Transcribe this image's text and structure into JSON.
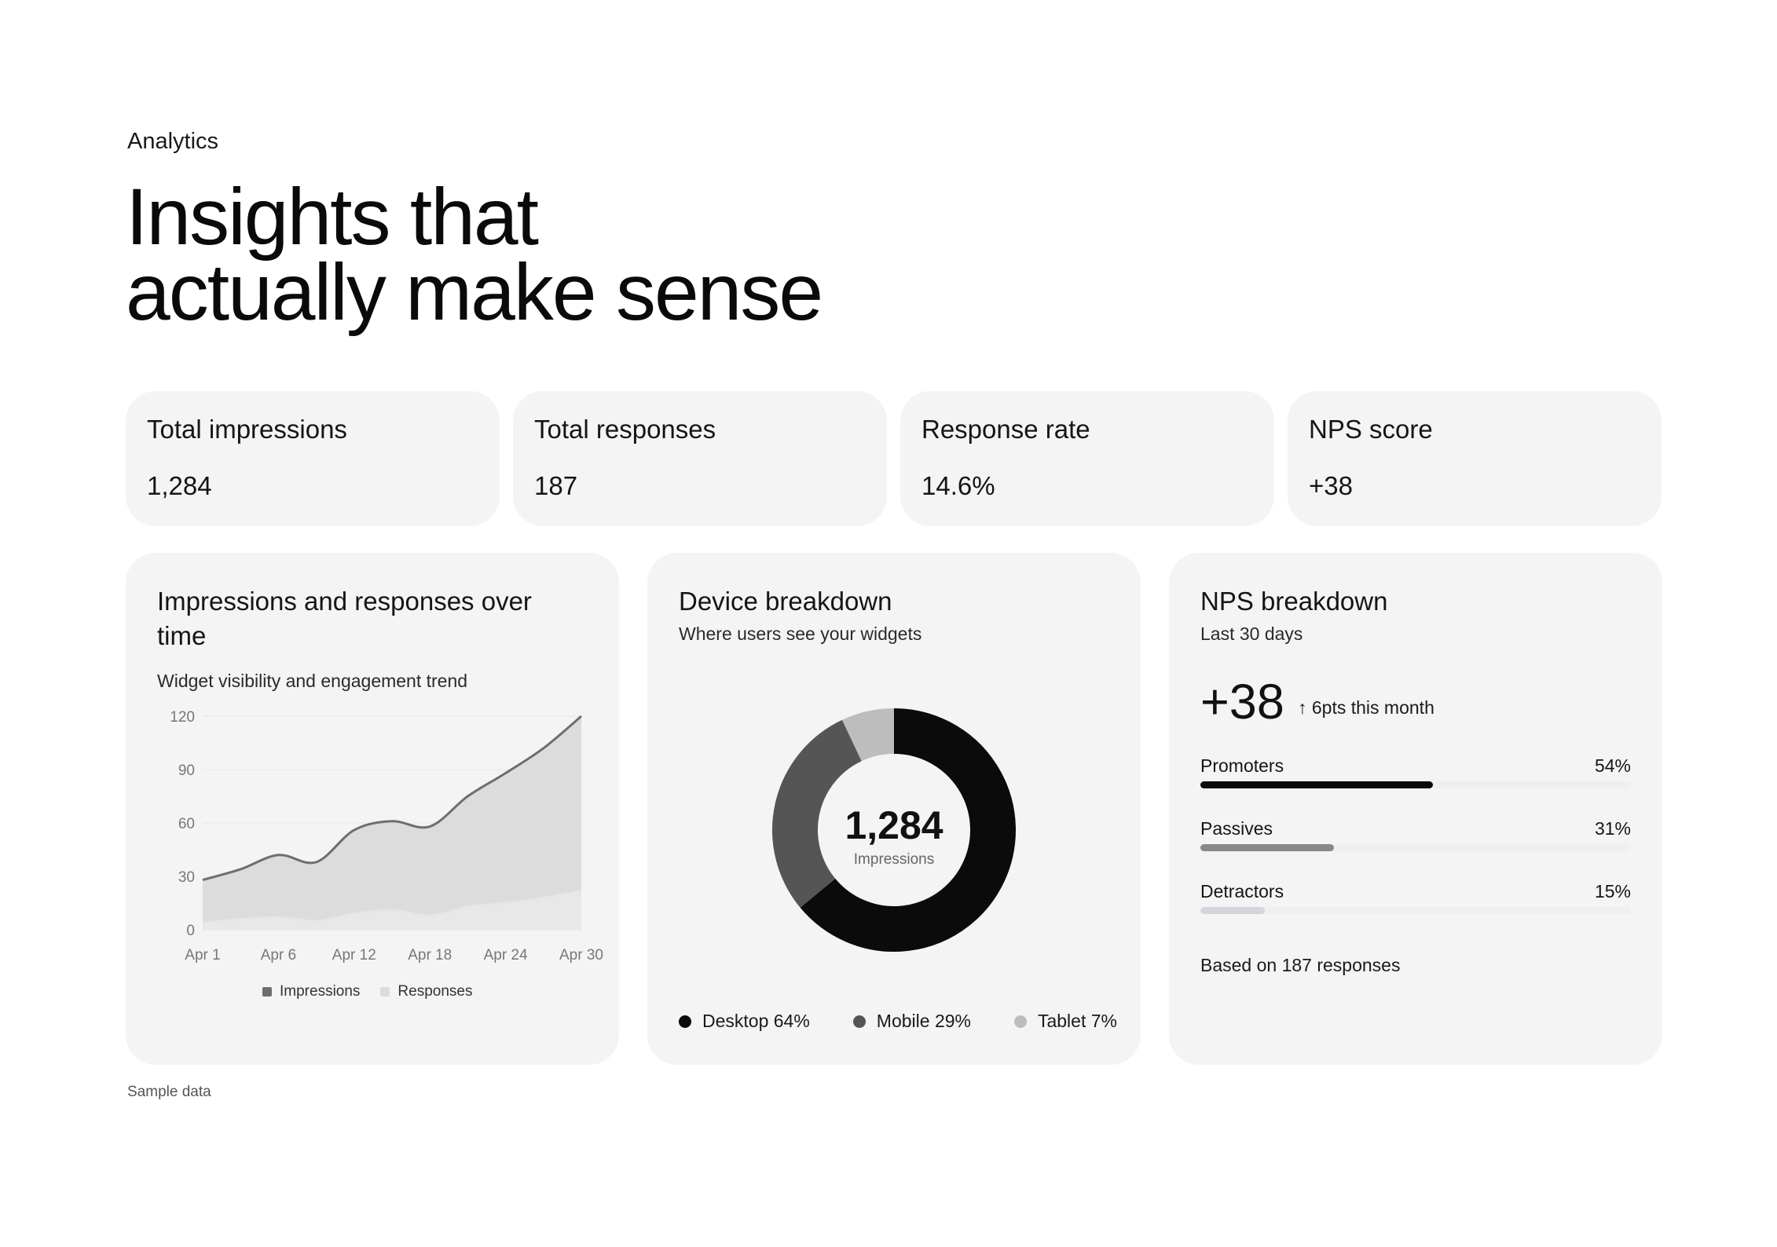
{
  "header": {
    "eyebrow": "Analytics",
    "title_line1": "Insights that",
    "title_line2": "actually make sense"
  },
  "stats": [
    {
      "label": "Total impressions",
      "value": "1,284"
    },
    {
      "label": "Total responses",
      "value": "187"
    },
    {
      "label": "Response rate",
      "value": "14.6%"
    },
    {
      "label": "NPS score",
      "value": "+38"
    }
  ],
  "trend_card": {
    "title": "Impressions and responses over time",
    "subtitle": "Widget visibility and engagement trend"
  },
  "device_card": {
    "title": "Device breakdown",
    "subtitle": "Where users see your widgets",
    "center_value": "1,284",
    "center_label": "Impressions",
    "legend": [
      {
        "label": "Desktop 64%",
        "color": "#0b0b0b"
      },
      {
        "label": "Mobile 29%",
        "color": "#555555"
      },
      {
        "label": "Tablet 7%",
        "color": "#bdbdbd"
      }
    ]
  },
  "nps_card": {
    "title": "NPS breakdown",
    "subtitle": "Last 30 days",
    "score": "+38",
    "delta": "↑ 6pts this month",
    "rows": [
      {
        "label": "Promoters",
        "value": "54%",
        "fraction": 0.54,
        "color": "#0b0b0b"
      },
      {
        "label": "Passives",
        "value": "31%",
        "fraction": 0.31,
        "color": "#888888"
      },
      {
        "label": "Detractors",
        "value": "15%",
        "fraction": 0.15,
        "color": "#d4d4de"
      }
    ],
    "footer": "Based on 187 responses"
  },
  "footnote": "Sample data",
  "chart_data": [
    {
      "type": "area",
      "x": [
        "Apr 1",
        "Apr 3",
        "Apr 6",
        "Apr 9",
        "Apr 12",
        "Apr 15",
        "Apr 18",
        "Apr 21",
        "Apr 24",
        "Apr 27",
        "Apr 30"
      ],
      "x_tick_labels": [
        "Apr 1",
        "Apr 6",
        "Apr 12",
        "Apr 18",
        "Apr 24",
        "Apr 30"
      ],
      "series": [
        {
          "name": "Impressions",
          "color": "#6e6e6e",
          "fill": "#dcdcdc",
          "values": [
            28,
            34,
            42,
            38,
            56,
            61,
            58,
            75,
            88,
            102,
            120
          ]
        },
        {
          "name": "Responses",
          "color": "#e6e6e6",
          "fill": "#e9e9e9",
          "values": [
            4,
            6,
            7,
            5,
            9,
            11,
            8,
            13,
            15,
            18,
            22
          ]
        }
      ],
      "y_ticks": [
        0,
        30,
        60,
        90,
        120
      ],
      "ylim": [
        0,
        120
      ],
      "grid": true,
      "legend": "bottom"
    },
    {
      "type": "pie",
      "donut": true,
      "categories": [
        "Desktop",
        "Mobile",
        "Tablet"
      ],
      "values": [
        64,
        29,
        7
      ],
      "colors": [
        "#0b0b0b",
        "#555555",
        "#bdbdbd"
      ]
    }
  ]
}
